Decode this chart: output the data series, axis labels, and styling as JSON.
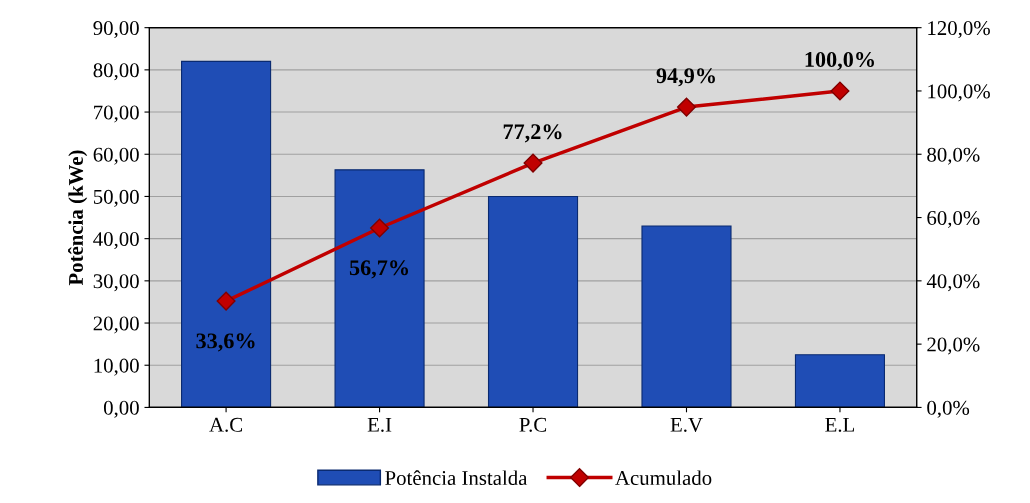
{
  "chart_data": {
    "type": "bar",
    "ylabel": "Potência (kWe)",
    "categories": [
      "A.C",
      "E.I",
      "P.C",
      "E.V",
      "E.L"
    ],
    "series": [
      {
        "name": "Potência Instalda",
        "color": "#1f4db5",
        "values": [
          82.0,
          56.3,
          50.0,
          43.0,
          12.5
        ]
      },
      {
        "name": "Acumulado",
        "type": "line",
        "axis": "y2",
        "color": "#c00000",
        "marker": "diamond",
        "values": [
          33.6,
          56.7,
          77.2,
          94.9,
          100.0
        ],
        "value_labels": [
          "33,6%",
          "56,7%",
          "77,2%",
          "94,9%",
          "100,0%"
        ]
      }
    ],
    "ylim": [
      0,
      90
    ],
    "yticks": [
      {
        "value": 0,
        "label": "0,00"
      },
      {
        "value": 10,
        "label": "10,00"
      },
      {
        "value": 20,
        "label": "20,00"
      },
      {
        "value": 30,
        "label": "30,00"
      },
      {
        "value": 40,
        "label": "40,00"
      },
      {
        "value": 50,
        "label": "50,00"
      },
      {
        "value": 60,
        "label": "60,00"
      },
      {
        "value": 70,
        "label": "70,00"
      },
      {
        "value": 80,
        "label": "80,00"
      },
      {
        "value": 90,
        "label": "90,00"
      }
    ],
    "y2lim": [
      0,
      120
    ],
    "y2ticks": [
      {
        "value": 0,
        "label": "0,0%"
      },
      {
        "value": 20,
        "label": "20,0%"
      },
      {
        "value": 40,
        "label": "40,0%"
      },
      {
        "value": 60,
        "label": "60,0%"
      },
      {
        "value": 80,
        "label": "80,0%"
      },
      {
        "value": 100,
        "label": "100,0%"
      },
      {
        "value": 120,
        "label": "120,0%"
      }
    ],
    "grid": "y",
    "legend": "bottom"
  }
}
